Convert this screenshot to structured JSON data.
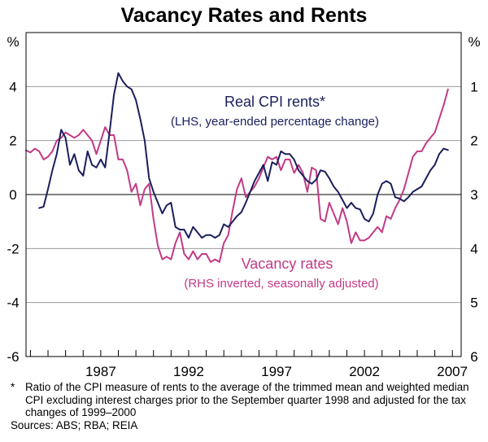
{
  "chart_data": {
    "type": "line",
    "title": "Vacancy Rates and Rents",
    "left_axis": {
      "unit": "%",
      "ylim": [
        -6,
        6
      ],
      "ticks": [
        "4",
        "2",
        "0",
        "-2",
        "-4",
        "-6"
      ]
    },
    "right_axis": {
      "unit": "%",
      "ylim": [
        0,
        6
      ],
      "inverted": true,
      "ticks": [
        "1",
        "2",
        "3",
        "4",
        "5",
        "6"
      ]
    },
    "x_ticks": [
      "1987",
      "1992",
      "1997",
      "2002",
      "2007"
    ],
    "xlim": [
      1982.75,
      2007.5
    ],
    "series": [
      {
        "name": "Real CPI rents*",
        "label_line1": "Real CPI rents*",
        "label_line2": "(LHS, year-ended percentage change)",
        "axis": "left",
        "color": "#1a1f5c",
        "x": [
          1983.5,
          1983.75,
          1984.0,
          1984.25,
          1984.5,
          1984.75,
          1985.0,
          1985.25,
          1985.5,
          1985.75,
          1986.0,
          1986.25,
          1986.5,
          1986.75,
          1987.0,
          1987.25,
          1987.5,
          1987.75,
          1988.0,
          1988.25,
          1988.5,
          1988.75,
          1989.0,
          1989.25,
          1989.5,
          1989.75,
          1990.0,
          1990.25,
          1990.5,
          1990.75,
          1991.0,
          1991.25,
          1991.5,
          1991.75,
          1992.0,
          1992.25,
          1992.5,
          1992.75,
          1993.0,
          1993.25,
          1993.5,
          1993.75,
          1994.0,
          1994.25,
          1994.5,
          1994.75,
          1995.0,
          1995.25,
          1995.5,
          1995.75,
          1996.0,
          1996.25,
          1996.5,
          1996.75,
          1997.0,
          1997.25,
          1997.5,
          1997.75,
          1998.0,
          1998.25,
          1998.5,
          1998.75,
          1999.0,
          1999.25,
          1999.5,
          1999.75,
          2000.0,
          2000.25,
          2000.5,
          2000.75,
          2001.0,
          2001.25,
          2001.5,
          2001.75,
          2002.0,
          2002.25,
          2002.5,
          2002.75,
          2003.0,
          2003.25,
          2003.5,
          2003.75,
          2004.0,
          2004.25,
          2004.5,
          2004.75,
          2005.0,
          2005.25,
          2005.5,
          2005.75,
          2006.0,
          2006.25,
          2006.5,
          2006.75
        ],
        "values": [
          -0.5,
          -0.45,
          0.2,
          0.9,
          1.5,
          2.4,
          2.1,
          1.1,
          1.5,
          0.9,
          0.7,
          1.6,
          1.1,
          1.0,
          1.3,
          1.0,
          2.3,
          3.7,
          4.5,
          4.2,
          4.0,
          3.9,
          3.5,
          2.8,
          2.0,
          0.6,
          0.1,
          -0.3,
          -0.7,
          -0.4,
          -0.3,
          -1.2,
          -1.3,
          -1.3,
          -1.6,
          -1.2,
          -1.4,
          -1.6,
          -1.5,
          -1.5,
          -1.6,
          -1.5,
          -1.1,
          -1.2,
          -1.0,
          -0.8,
          -0.65,
          -0.3,
          0.1,
          0.5,
          0.8,
          1.1,
          0.5,
          1.2,
          1.1,
          1.6,
          1.5,
          1.5,
          1.3,
          0.9,
          0.7,
          0.5,
          0.4,
          0.55,
          0.9,
          0.85,
          0.6,
          0.3,
          0.1,
          -0.2,
          -0.5,
          -0.3,
          -0.5,
          -0.55,
          -0.9,
          -1.0,
          -0.7,
          0.0,
          0.4,
          0.5,
          0.4,
          -0.1,
          -0.15,
          -0.25,
          -0.1,
          0.1,
          0.2,
          0.3,
          0.6,
          0.9,
          1.1,
          1.5,
          1.7,
          1.65
        ]
      },
      {
        "name": "Vacancy rates",
        "label_line1": "Vacancy rates",
        "label_line2": "(RHS inverted, seasonally adjusted)",
        "axis": "right",
        "color": "#c23a86",
        "x": [
          1982.75,
          1983.0,
          1983.25,
          1983.5,
          1983.75,
          1984.0,
          1984.25,
          1984.5,
          1984.75,
          1985.0,
          1985.25,
          1985.5,
          1985.75,
          1986.0,
          1986.25,
          1986.5,
          1986.75,
          1987.0,
          1987.25,
          1987.5,
          1987.75,
          1988.0,
          1988.25,
          1988.5,
          1988.75,
          1989.0,
          1989.25,
          1989.5,
          1989.75,
          1990.0,
          1990.25,
          1990.5,
          1990.75,
          1991.0,
          1991.25,
          1991.5,
          1991.75,
          1992.0,
          1992.25,
          1992.5,
          1992.75,
          1993.0,
          1993.25,
          1993.5,
          1993.75,
          1994.0,
          1994.25,
          1994.5,
          1994.75,
          1995.0,
          1995.25,
          1995.5,
          1995.75,
          1996.0,
          1996.25,
          1996.5,
          1996.75,
          1997.0,
          1997.25,
          1997.5,
          1997.75,
          1998.0,
          1998.25,
          1998.5,
          1998.75,
          1999.0,
          1999.25,
          1999.5,
          1999.75,
          2000.0,
          2000.25,
          2000.5,
          2000.75,
          2001.0,
          2001.25,
          2001.5,
          2001.75,
          2002.0,
          2002.25,
          2002.5,
          2002.75,
          2003.0,
          2003.25,
          2003.5,
          2003.75,
          2004.0,
          2004.25,
          2004.5,
          2004.75,
          2005.0,
          2005.25,
          2005.5,
          2005.75,
          2006.0,
          2006.25,
          2006.5,
          2006.75
        ],
        "values": [
          2.18,
          2.22,
          2.15,
          2.2,
          2.35,
          2.3,
          2.2,
          2.0,
          1.95,
          1.85,
          1.9,
          1.95,
          1.9,
          1.8,
          1.9,
          2.0,
          2.25,
          2.0,
          1.75,
          1.9,
          1.9,
          2.35,
          2.35,
          2.55,
          2.95,
          2.8,
          3.2,
          2.9,
          2.8,
          3.45,
          3.95,
          4.2,
          4.15,
          4.2,
          3.9,
          3.7,
          4.1,
          4.2,
          4.05,
          4.2,
          4.1,
          4.1,
          4.25,
          4.2,
          4.25,
          3.9,
          3.75,
          3.3,
          2.9,
          2.7,
          3.05,
          2.95,
          2.85,
          2.7,
          2.5,
          2.3,
          2.35,
          2.3,
          2.55,
          2.35,
          2.35,
          2.6,
          2.45,
          2.6,
          2.95,
          2.5,
          2.55,
          3.45,
          3.5,
          3.15,
          3.35,
          3.55,
          3.25,
          3.5,
          3.9,
          3.7,
          3.85,
          3.85,
          3.8,
          3.7,
          3.6,
          3.7,
          3.4,
          3.45,
          3.25,
          3.1,
          2.9,
          2.6,
          2.3,
          2.2,
          2.2,
          2.05,
          1.95,
          1.85,
          1.6,
          1.35,
          1.05
        ]
      }
    ],
    "grid": true
  },
  "footnote": {
    "star": "*",
    "text": "Ratio of the CPI measure of rents to the average of the trimmed mean and weighted median CPI excluding interest charges prior to the September quarter 1998 and adjusted for the tax changes of 1999–2000"
  },
  "sources": "Sources: ABS; RBA; REIA"
}
